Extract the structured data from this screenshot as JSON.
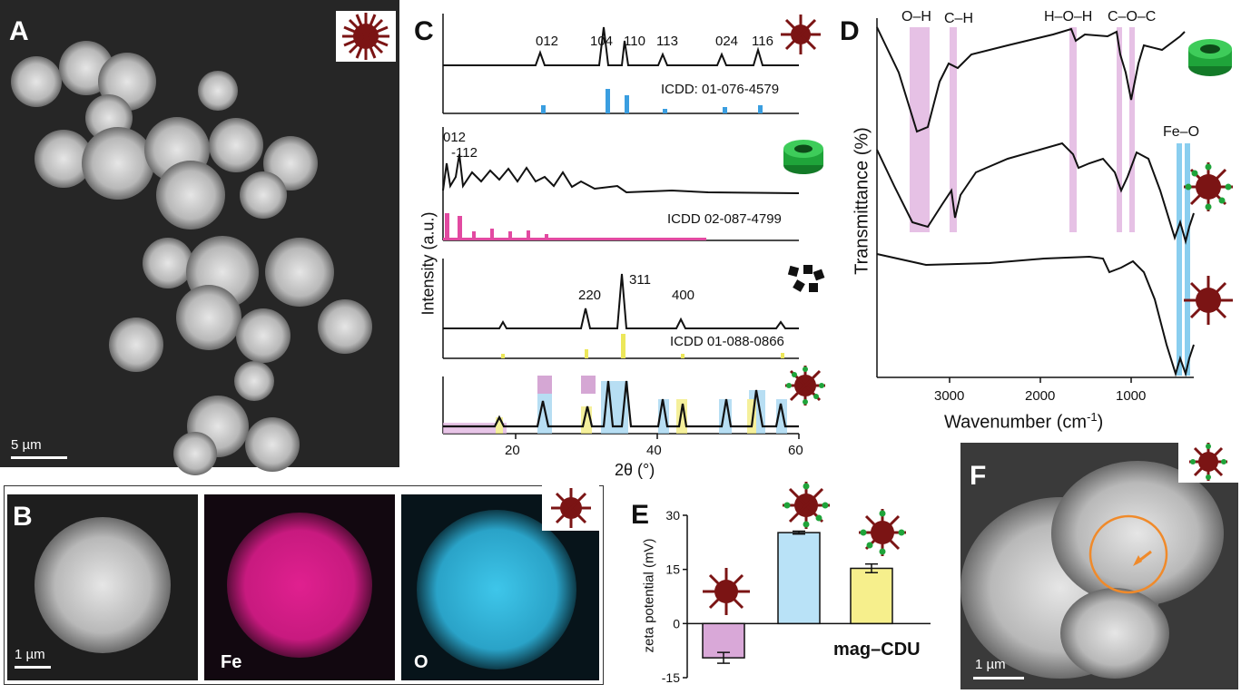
{
  "panels": {
    "A": {
      "label": "A",
      "scalebar": "5 µm"
    },
    "B": {
      "label": "B",
      "scalebar": "1 µm",
      "maps": [
        "Fe",
        "O"
      ]
    },
    "C": {
      "label": "C",
      "xlabel": "2θ (°)",
      "ylabel": "Intensity (a.u.)",
      "xticks": [
        "20",
        "40",
        "60"
      ],
      "refs": [
        "ICDD: 01-076-4579",
        "ICDD 02-087-4799",
        "ICDD 01-088-0866"
      ],
      "hkl1": [
        "012",
        "104",
        "110",
        "113",
        "024",
        "116"
      ],
      "hkl2": [
        "012",
        "-112"
      ],
      "hkl3": [
        "220",
        "311",
        "400"
      ]
    },
    "D": {
      "label": "D",
      "xlabel": "Wavenumber (cm",
      "xlabel_sup": "-1",
      "xlabel_end": ")",
      "ylabel": "Transmittance (%)",
      "xticks": [
        "3000",
        "2000",
        "1000"
      ],
      "bands": [
        "O–H",
        "C–H",
        "H–O–H",
        "C–O–C",
        "Fe–O"
      ]
    },
    "E": {
      "label": "E",
      "ylabel": "zeta potential (mV)",
      "annotation": "mag–CDU",
      "yticks": [
        "30",
        "15",
        "0",
        "-15"
      ]
    },
    "F": {
      "label": "F",
      "scalebar": "1 µm"
    }
  },
  "chart_data": [
    {
      "type": "bar",
      "panel": "E",
      "categories": [
        "",
        "",
        ""
      ],
      "values": [
        -9.5,
        25.2,
        15.3
      ],
      "errors": [
        1.5,
        0.4,
        1.2
      ],
      "colors": [
        "#d9a8d8",
        "#b9e2f7",
        "#f6ef8c"
      ],
      "ylim": [
        -15,
        30
      ],
      "ylabel": "zeta potential (mV)"
    }
  ],
  "colors": {
    "hematite": "#7b1414",
    "cd_ring": "#1fa43a",
    "pink": "#e0b2df",
    "blue": "#4ab3e6",
    "magenta": "#e24aa1",
    "yellow": "#ece75a"
  }
}
